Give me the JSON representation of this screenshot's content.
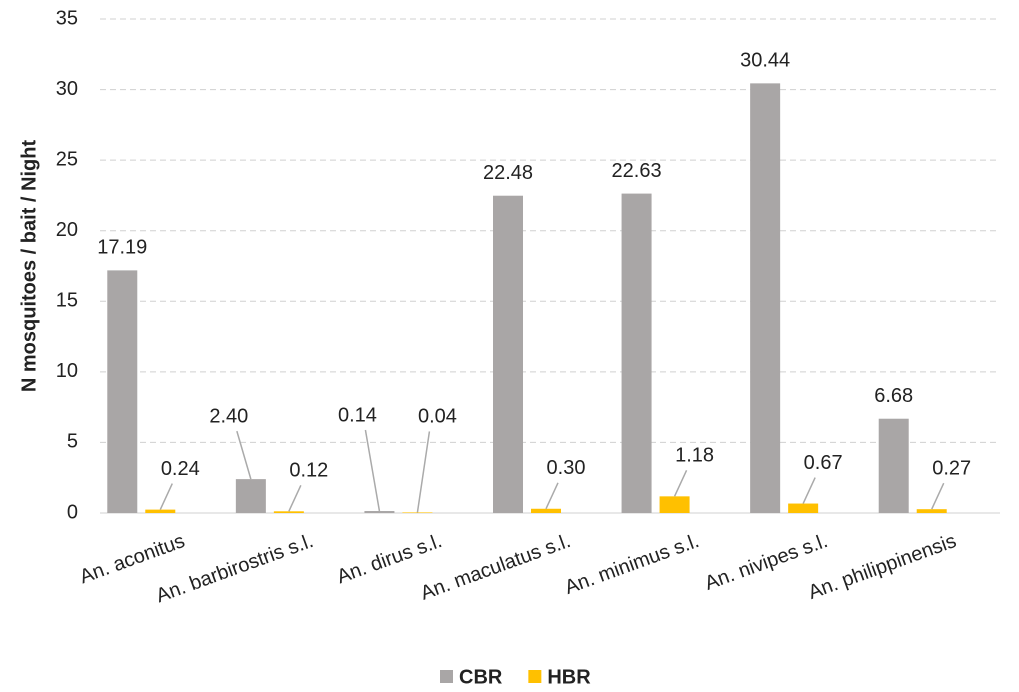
{
  "chart_data": {
    "type": "bar",
    "y_label": "N mosquitoes / bait / Night",
    "categories": [
      "An. aconitus",
      "An. barbirostris s.l.",
      "An. dirus s.l.",
      "An. maculatus s.l.",
      "An. minimus s.l.",
      "An. nivipes s.l.",
      "An. philippinensis"
    ],
    "series": [
      {
        "name": "CBR",
        "color": "#a9a6a6",
        "values": [
          17.19,
          2.4,
          0.14,
          22.48,
          22.63,
          30.44,
          6.68
        ],
        "value_labels": [
          "17.19",
          "2.40",
          "0.14",
          "22.48",
          "22.63",
          "30.44",
          "6.68"
        ]
      },
      {
        "name": "HBR",
        "color": "#ffc000",
        "values": [
          0.24,
          0.12,
          0.04,
          0.3,
          1.18,
          0.67,
          0.27
        ],
        "value_labels": [
          "0.24",
          "0.12",
          "0.04",
          "0.30",
          "1.18",
          "0.67",
          "0.27"
        ]
      }
    ],
    "ylim": [
      0,
      35
    ],
    "yticks": [
      0,
      5,
      10,
      15,
      20,
      25,
      30,
      35
    ],
    "grid": true,
    "legend": "bottom"
  }
}
